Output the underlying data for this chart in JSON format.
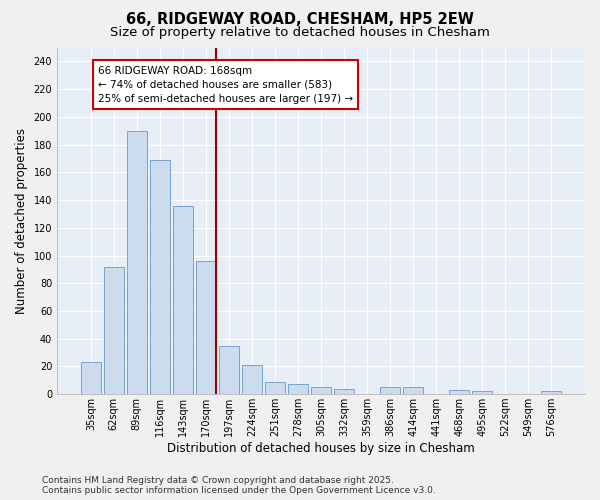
{
  "title_line1": "66, RIDGEWAY ROAD, CHESHAM, HP5 2EW",
  "title_line2": "Size of property relative to detached houses in Chesham",
  "xlabel": "Distribution of detached houses by size in Chesham",
  "ylabel": "Number of detached properties",
  "bar_color": "#ccdcee",
  "bar_edge_color": "#6699cc",
  "bg_color": "#e8eef5",
  "grid_color": "#ffffff",
  "vline_color": "#990000",
  "annotation_text": "66 RIDGEWAY ROAD: 168sqm\n← 74% of detached houses are smaller (583)\n25% of semi-detached houses are larger (197) →",
  "annotation_box_color": "#ffffff",
  "annotation_edge_color": "#cc0000",
  "categories": [
    "35sqm",
    "62sqm",
    "89sqm",
    "116sqm",
    "143sqm",
    "170sqm",
    "197sqm",
    "224sqm",
    "251sqm",
    "278sqm",
    "305sqm",
    "332sqm",
    "359sqm",
    "386sqm",
    "414sqm",
    "441sqm",
    "468sqm",
    "495sqm",
    "522sqm",
    "549sqm",
    "576sqm"
  ],
  "values": [
    23,
    92,
    190,
    169,
    136,
    96,
    35,
    21,
    9,
    7,
    5,
    4,
    0,
    5,
    5,
    0,
    3,
    2,
    0,
    0,
    2
  ],
  "ylim": [
    0,
    250
  ],
  "yticks": [
    0,
    20,
    40,
    60,
    80,
    100,
    120,
    140,
    160,
    180,
    200,
    220,
    240
  ],
  "footer_line1": "Contains HM Land Registry data © Crown copyright and database right 2025.",
  "footer_line2": "Contains public sector information licensed under the Open Government Licence v3.0.",
  "title_fontsize": 10.5,
  "subtitle_fontsize": 9.5,
  "tick_fontsize": 7,
  "label_fontsize": 8.5,
  "footer_fontsize": 6.5,
  "ann_fontsize": 7.5
}
